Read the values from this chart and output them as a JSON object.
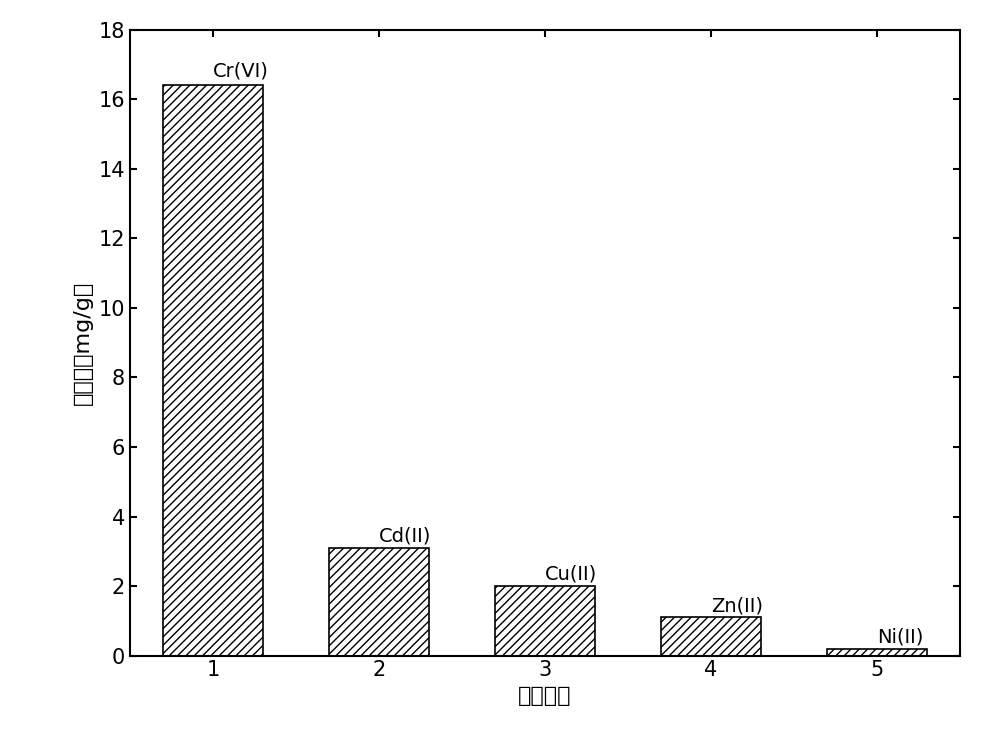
{
  "categories": [
    1,
    2,
    3,
    4,
    5
  ],
  "values": [
    16.4,
    3.1,
    2.0,
    1.1,
    0.2
  ],
  "labels": [
    "Cr(VI)",
    "Cd(II)",
    "Cu(II)",
    "Zn(II)",
    "Ni(II)"
  ],
  "bar_color": "#ffffff",
  "bar_edgecolor": "#000000",
  "hatch": "////",
  "xlabel": "金属离子",
  "ylabel": "吸附量（mg/g）",
  "ylim": [
    0,
    18
  ],
  "yticks": [
    0,
    2,
    4,
    6,
    8,
    10,
    12,
    14,
    16,
    18
  ],
  "xticks": [
    1,
    2,
    3,
    4,
    5
  ],
  "bar_width": 0.6,
  "label_fontsize": 16,
  "tick_fontsize": 15,
  "annotation_fontsize": 14,
  "figsize": [
    10.0,
    7.45
  ],
  "dpi": 100,
  "background_color": "#ffffff",
  "linewidth": 1.2,
  "label_offsets": [
    0.15,
    0.08,
    0.08,
    0.05,
    0.05
  ],
  "xlim": [
    0.5,
    5.5
  ],
  "spine_linewidth": 1.5
}
